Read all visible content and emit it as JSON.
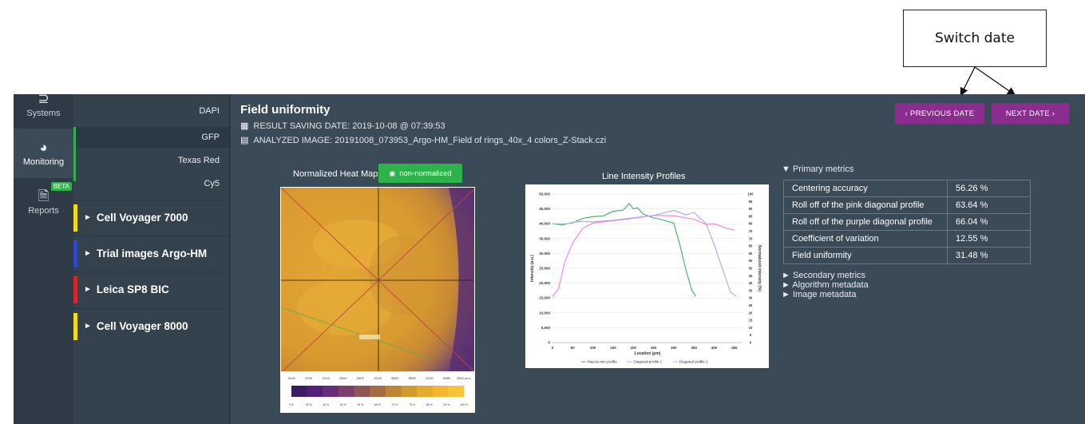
{
  "callout": {
    "label": "Switch date"
  },
  "rail": {
    "items": [
      {
        "label": "Systems",
        "icon": "systems-icon"
      },
      {
        "label": "Monitoring",
        "icon": "dashboard-icon"
      },
      {
        "label": "Reports",
        "icon": "document-icon",
        "badge": "BETA"
      }
    ]
  },
  "channels": [
    "DAPI",
    "GFP",
    "Texas Red",
    "Cy5"
  ],
  "systems": [
    {
      "name": "Cell Voyager 7000",
      "color": "#f2dc15"
    },
    {
      "name": "Trial images Argo-HM",
      "color": "#2f47c4"
    },
    {
      "name": "Leica SP8 BIC",
      "color": "#d6262d"
    },
    {
      "name": "Cell Voyager 8000",
      "color": "#f2dc15"
    }
  ],
  "main": {
    "title": "Field uniformity",
    "saving_date": "RESULT SAVING DATE: 2019-10-08 @ 07:39:53",
    "analyzed_image": "ANALYZED IMAGE: 20191008_073953_Argo-HM_Field of rings_40x_4 colors_Z-Stack.czi",
    "prev_button": "‹  PREVIOUS DATE",
    "next_button": "NEXT DATE  ›",
    "heatmap_label": "Normalized Heat Map",
    "toggle_label": "non-normalized"
  },
  "metrics": {
    "primary_header": "▼ Primary metrics",
    "rows": [
      {
        "label": "Centering accuracy",
        "value": "56.26 %"
      },
      {
        "label": "Roll off of the pink diagonal profile",
        "value": "63.64 %"
      },
      {
        "label": "Roll off of the purple diagonal profile",
        "value": "66.04 %"
      },
      {
        "label": "Coefficient of variation",
        "value": "12.55 %"
      },
      {
        "label": "Field uniformity",
        "value": "31.48 %"
      }
    ],
    "collapsed": [
      "► Secondary metrics",
      "► Algorithm metadata",
      "► Image metadata"
    ]
  },
  "heatmap": {
    "legend_ticks": [
      "10440",
      "16780",
      "22210",
      "25510",
      "28870",
      "32240",
      "35600",
      "38960",
      "42320",
      "45680",
      "49041 (a.u.)"
    ],
    "legend_pct": [
      "0 %",
      "30 %",
      "40 %",
      "52 %",
      "59 %",
      "66 %",
      "72 %",
      "79 %",
      "86 %",
      "93 %",
      "100 %"
    ],
    "legend_colors": [
      "#3b1d63",
      "#52207a",
      "#6a2c7a",
      "#7d3f6a",
      "#8f5557",
      "#a56c43",
      "#bd8534",
      "#d29a2c",
      "#e4ac2a",
      "#f2b731",
      "#f7c33a"
    ]
  },
  "chart_data": {
    "type": "line",
    "title": "Line Intensity Profiles",
    "xlabel": "Location (µm)",
    "ylabel": "Intensity (a.u.)",
    "y2label": "Normalized intensity (%)",
    "x_ticks": [
      0,
      50,
      100,
      150,
      200,
      250,
      300,
      350,
      400,
      450
    ],
    "y_ticks": [
      0,
      5000,
      10000,
      15000,
      20000,
      25000,
      30000,
      35000,
      40000,
      45000,
      50000
    ],
    "y_tick_labels": [
      "0",
      "5,000",
      "10,000",
      "15,000",
      "20,000",
      "25,000",
      "30,000",
      "35,000",
      "40,000",
      "45,000",
      "50,000"
    ],
    "y2_ticks": [
      0,
      5,
      10,
      15,
      20,
      25,
      30,
      35,
      40,
      45,
      50,
      55,
      60,
      65,
      70,
      75,
      80,
      85,
      90,
      95,
      100
    ],
    "xlim": [
      0,
      470
    ],
    "ylim": [
      0,
      50000
    ],
    "series": [
      {
        "name": "Max-to-min profile",
        "color": "#3bb15a",
        "x": [
          0,
          25,
          50,
          75,
          100,
          125,
          150,
          175,
          190,
          200,
          210,
          225,
          250,
          275,
          300,
          315,
          330,
          345,
          355
        ],
        "values": [
          40000,
          39800,
          40300,
          41800,
          42400,
          42600,
          44200,
          44600,
          46800,
          45000,
          45400,
          43200,
          42000,
          41200,
          40200,
          33000,
          24500,
          17500,
          15500
        ]
      },
      {
        "name": "Diagonal profile 1",
        "color": "#ee7fd6",
        "x": [
          0,
          15,
          30,
          50,
          75,
          100,
          150,
          200,
          250,
          300,
          350,
          380,
          400,
          430,
          450
        ],
        "values": [
          15500,
          18000,
          27000,
          33500,
          38500,
          40200,
          41000,
          41800,
          42800,
          42700,
          41500,
          39800,
          40000,
          38500,
          37800
        ]
      },
      {
        "name": "Diagonal profile 2",
        "color": "#a9a7ef",
        "x": [
          0,
          25,
          50,
          75,
          100,
          150,
          200,
          250,
          300,
          330,
          350,
          380,
          400,
          420,
          440,
          455
        ],
        "values": [
          40000,
          39500,
          40500,
          40800,
          40600,
          41200,
          42000,
          42800,
          44500,
          43000,
          43800,
          40000,
          33000,
          25000,
          17000,
          15500
        ]
      }
    ]
  }
}
